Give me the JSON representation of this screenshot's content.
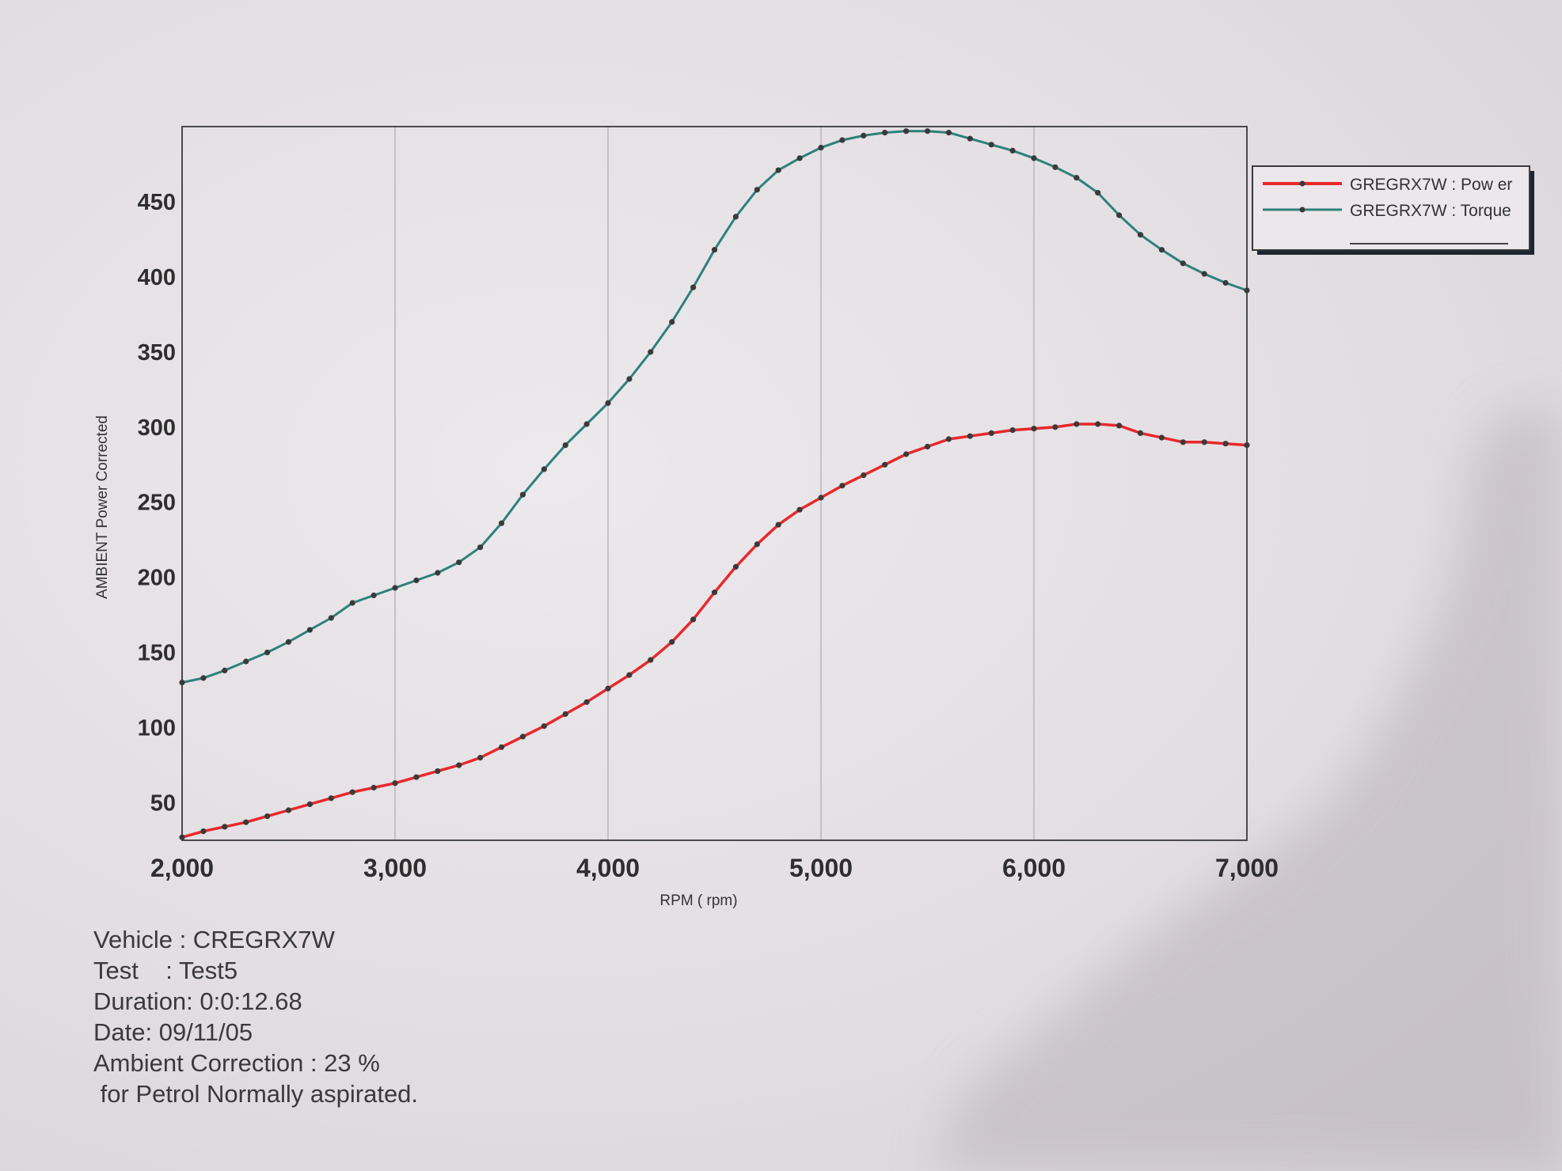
{
  "chart_data": {
    "type": "line",
    "title": "",
    "xlabel": "RPM ( rpm)",
    "ylabel": "AMBIENT Power Corrected",
    "xlim": [
      2000,
      7000
    ],
    "ylim": [
      25,
      500
    ],
    "x_ticks": [
      "2,000",
      "3,000",
      "4,000",
      "5,000",
      "6,000",
      "7,000"
    ],
    "y_ticks": [
      "50",
      "100",
      "150",
      "200",
      "250",
      "300",
      "350",
      "400",
      "450"
    ],
    "grid": true,
    "legend_position": "top-right, outside plot",
    "series": [
      {
        "name": "GREGRX7W : Pow er",
        "color": "#e8282c",
        "x": [
          2000,
          2100,
          2200,
          2300,
          2400,
          2500,
          2600,
          2700,
          2800,
          2900,
          3000,
          3100,
          3200,
          3300,
          3400,
          3500,
          3600,
          3700,
          3800,
          3900,
          4000,
          4100,
          4200,
          4300,
          4400,
          4500,
          4600,
          4700,
          4800,
          4900,
          5000,
          5100,
          5200,
          5300,
          5400,
          5500,
          5600,
          5700,
          5800,
          5900,
          6000,
          6100,
          6200,
          6300,
          6400,
          6500,
          6600,
          6700,
          6800,
          6900,
          7000
        ],
        "values": [
          27,
          31,
          34,
          37,
          41,
          45,
          49,
          53,
          57,
          60,
          63,
          67,
          71,
          75,
          80,
          87,
          94,
          101,
          109,
          117,
          126,
          135,
          145,
          157,
          172,
          190,
          207,
          222,
          235,
          245,
          253,
          261,
          268,
          275,
          282,
          287,
          292,
          294,
          296,
          298,
          299,
          300,
          302,
          302,
          301,
          296,
          293,
          290,
          290,
          289,
          288
        ]
      },
      {
        "name": "GREGRX7W : Torque",
        "color": "#2e8178",
        "x": [
          2000,
          2100,
          2200,
          2300,
          2400,
          2500,
          2600,
          2700,
          2800,
          2900,
          3000,
          3100,
          3200,
          3300,
          3400,
          3500,
          3600,
          3700,
          3800,
          3900,
          4000,
          4100,
          4200,
          4300,
          4400,
          4500,
          4600,
          4700,
          4800,
          4900,
          5000,
          5100,
          5200,
          5300,
          5400,
          5500,
          5600,
          5700,
          5800,
          5900,
          6000,
          6100,
          6200,
          6300,
          6400,
          6500,
          6600,
          6700,
          6800,
          6900,
          7000
        ],
        "values": [
          130,
          133,
          138,
          144,
          150,
          157,
          165,
          173,
          183,
          188,
          193,
          198,
          203,
          210,
          220,
          236,
          255,
          272,
          288,
          302,
          316,
          332,
          350,
          370,
          393,
          418,
          440,
          458,
          471,
          479,
          486,
          491,
          494,
          496,
          497,
          497,
          496,
          492,
          488,
          484,
          479,
          473,
          466,
          456,
          441,
          428,
          418,
          409,
          402,
          396,
          391
        ]
      }
    ]
  },
  "legend": {
    "items": [
      "GREGRX7W : Pow er",
      "GREGRX7W : Torque"
    ]
  },
  "info": {
    "vehicle": "Vehicle : CREGRX7W",
    "test": "Test    : Test5",
    "duration": "Duration: 0:0:12.68",
    "date": "Date: 09/11/05",
    "ambient": "Ambient Correction : 23 %",
    "petrol": " for Petrol Normally aspirated."
  }
}
